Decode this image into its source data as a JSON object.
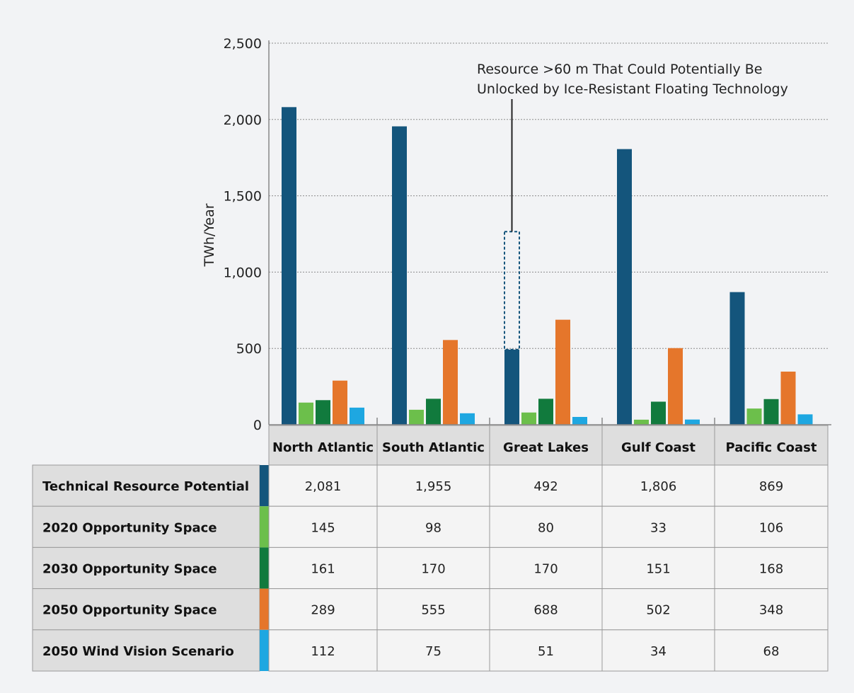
{
  "chart_data": {
    "type": "bar",
    "ylabel": "TWh/Year",
    "ylim": [
      0,
      2500
    ],
    "yticks": [
      "0",
      "500",
      "1,000",
      "1,500",
      "2,000",
      "2,500"
    ],
    "ytick_values": [
      0,
      500,
      1000,
      1500,
      2000,
      2500
    ],
    "grid": true,
    "categories": [
      "North Atlantic",
      "South Atlantic",
      "Great Lakes",
      "Gulf Coast",
      "Pacific Coast"
    ],
    "series": [
      {
        "name": "Technical Resource Potential",
        "color": "#14557c",
        "values": [
          2081,
          1955,
          492,
          1806,
          869
        ],
        "labels": [
          "2,081",
          "1,955",
          "492",
          "1,806",
          "869"
        ]
      },
      {
        "name": "2020 Opportunity Space",
        "color": "#6cbf4b",
        "values": [
          145,
          98,
          80,
          33,
          106
        ],
        "labels": [
          "145",
          "98",
          "80",
          "33",
          "106"
        ]
      },
      {
        "name": "2030 Opportunity Space",
        "color": "#117a3d",
        "values": [
          161,
          170,
          170,
          151,
          168
        ],
        "labels": [
          "161",
          "170",
          "170",
          "151",
          "168"
        ]
      },
      {
        "name": "2050 Opportunity Space",
        "color": "#e5762b",
        "values": [
          289,
          555,
          688,
          502,
          348
        ],
        "labels": [
          "289",
          "555",
          "688",
          "502",
          "348"
        ]
      },
      {
        "name": "2050 Wind Vision Scenario",
        "color": "#1ea7e1",
        "values": [
          112,
          75,
          51,
          34,
          68
        ],
        "labels": [
          "112",
          "75",
          "51",
          "34",
          "68"
        ]
      }
    ],
    "annotation": {
      "lines": [
        "Resource >60 m That Could Potentially Be",
        "Unlocked by Ice-Resistant Floating Technology"
      ],
      "category_index": 2,
      "outline_top_value": 1265
    }
  }
}
